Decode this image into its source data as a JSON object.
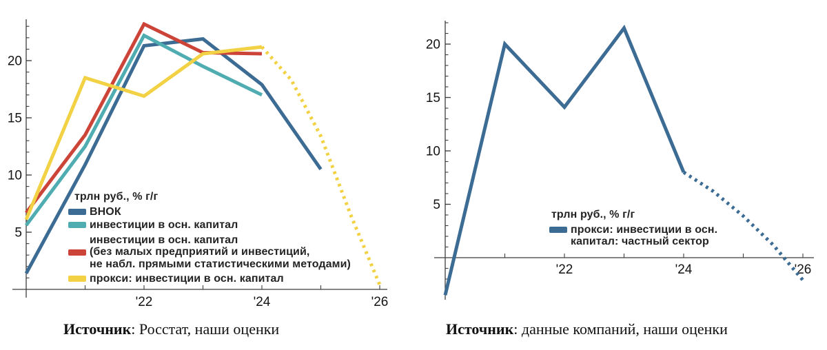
{
  "page": {
    "background": "#ffffff"
  },
  "chart_data": [
    {
      "type": "line",
      "panel": "left",
      "xlim": [
        2020,
        2026.3
      ],
      "ylim": [
        0,
        23.5
      ],
      "grid": false,
      "x_axis": {
        "minor_tick_years": [
          2021,
          2022,
          2023,
          2024,
          2025,
          2026
        ],
        "labels": [
          {
            "x": 2022,
            "label": "'22"
          },
          {
            "x": 2024,
            "label": "'24"
          },
          {
            "x": 2026,
            "label": "'26"
          }
        ]
      },
      "y_axis": {
        "minor_from": 1,
        "minor_to": 23,
        "labels": [
          {
            "v": 5,
            "label": "5"
          },
          {
            "v": 10,
            "label": "10"
          },
          {
            "v": 15,
            "label": "15"
          },
          {
            "v": 20,
            "label": "20"
          }
        ]
      },
      "legend": {
        "title": "трлн руб., % г/г",
        "items": [
          {
            "color": "#3C6B94",
            "lines": [
              "ВНОК"
            ]
          },
          {
            "color": "#4FADB2",
            "lines": [
              "инвестиции в осн. капитал"
            ]
          },
          {
            "color": "#CC4338",
            "lines": [
              "инвестиции в осн. капитал",
              "(без малых предприятий и инвестиций,",
              "не набл. прямыми статистическими методами)"
            ]
          },
          {
            "color": "#F2D244",
            "lines": [
              "прокси: инвестиции в осн. капитал"
            ]
          }
        ]
      },
      "series": [
        {
          "name": "ВНОК",
          "color": "#3C6B94",
          "solid": {
            "x": [
              2020,
              2021,
              2022,
              2023,
              2024,
              2025
            ],
            "v": [
              1.4,
              10.9,
              21.3,
              21.9,
              17.9,
              10.5
            ]
          }
        },
        {
          "name": "инвестиции в осн. капитал",
          "color": "#4FADB2",
          "solid": {
            "x": [
              2020,
              2021,
              2022,
              2023,
              2024
            ],
            "v": [
              5.6,
              12.5,
              22.2,
              19.5,
              17.0
            ]
          }
        },
        {
          "name": "инвестиции в осн. капитал (без малых предприятий и инвестиций, не набл. прямыми статистическими методами)",
          "color": "#CC4338",
          "solid": {
            "x": [
              2020,
              2021,
              2022,
              2023,
              2024
            ],
            "v": [
              6.7,
              13.5,
              23.2,
              20.7,
              20.6
            ]
          }
        },
        {
          "name": "прокси: инвестиции в осн. капитал",
          "color": "#F2D244",
          "solid": {
            "x": [
              2020,
              2021,
              2022,
              2023,
              2024
            ],
            "v": [
              6.1,
              18.5,
              16.9,
              20.6,
              21.2
            ]
          },
          "dotted": {
            "x": [
              2024,
              2024.5,
              2025,
              2025.5,
              2026
            ],
            "v": [
              21.2,
              18.3,
              13.4,
              6.6,
              0.4
            ]
          }
        }
      ],
      "source_bold": "Источник",
      "source_rest": ": Росстат, наши оценки"
    },
    {
      "type": "line",
      "panel": "right",
      "xlim": [
        2020,
        2026.3
      ],
      "ylim": [
        -4,
        22.3
      ],
      "grid": false,
      "x_axis": {
        "minor_tick_years": [
          2021,
          2022,
          2023,
          2024,
          2025,
          2026
        ],
        "labels": [
          {
            "x": 2022,
            "label": "'22"
          },
          {
            "x": 2024,
            "label": "'24"
          },
          {
            "x": 2026,
            "label": "'26"
          }
        ]
      },
      "y_axis": {
        "minor_from": -3,
        "minor_to": 22,
        "labels": [
          {
            "v": 5,
            "label": "5"
          },
          {
            "v": 10,
            "label": "10"
          },
          {
            "v": 15,
            "label": "15"
          },
          {
            "v": 20,
            "label": "20"
          }
        ]
      },
      "legend": {
        "title": "трлн руб., % г/г",
        "items": [
          {
            "color": "#3C6B94",
            "lines": [
              "прокси: инвестиции в осн.",
              "капитал: частный сектор"
            ]
          }
        ]
      },
      "series": [
        {
          "name": "прокси: инвестиции в осн. капитал: частный сектор",
          "color": "#3C6B94",
          "solid": {
            "x": [
              2020,
              2021,
              2022,
              2023,
              2024
            ],
            "v": [
              -3.5,
              20.0,
              14.1,
              21.5,
              8.0
            ]
          },
          "dotted": {
            "x": [
              2024,
              2024.5,
              2025,
              2025.5,
              2026
            ],
            "v": [
              8.0,
              6.2,
              3.9,
              1.2,
              -2.1
            ]
          }
        }
      ],
      "source_bold": "Источник",
      "source_rest": ": данные компаний, наши оценки"
    }
  ]
}
